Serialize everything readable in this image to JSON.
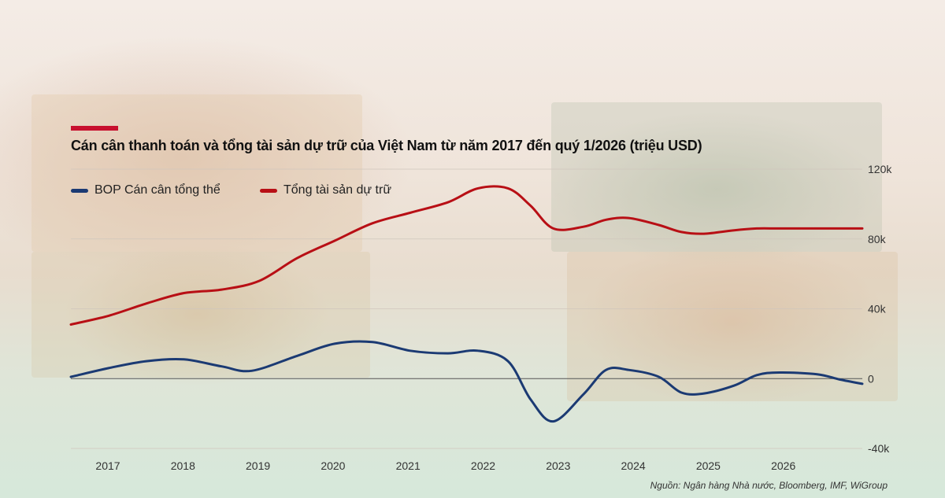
{
  "chart_data": {
    "type": "line",
    "title": "Cán cân thanh toán và tổng tài sản dự trữ của Việt Nam từ năm 2017 đến quý 1/2026 (triệu USD)",
    "categories": [
      "2017",
      "2018",
      "2019",
      "2020",
      "2021",
      "2022",
      "2023",
      "2024",
      "2025",
      "2026"
    ],
    "y_ticks": [
      "120k",
      "80k",
      "40k",
      "0",
      "-40k"
    ],
    "ylim": [
      -40000,
      120000
    ],
    "grid": true,
    "legend_position": "top-left",
    "series": [
      {
        "name": "BOP Cán cân tổng thể",
        "color": "#1b3a73",
        "x": [
          2016.5,
          2017.0,
          2017.5,
          2018.0,
          2018.5,
          2018.9,
          2019.5,
          2020.0,
          2020.5,
          2021.0,
          2021.5,
          2021.9,
          2022.3,
          2022.6,
          2022.9,
          2023.3,
          2023.6,
          2023.9,
          2024.3,
          2024.6,
          2024.9,
          2025.3,
          2025.6,
          2025.9,
          2026.4,
          2026.7,
          2027.0
        ],
        "values": [
          1000,
          6000,
          10000,
          11000,
          7000,
          4500,
          13000,
          20000,
          21000,
          16000,
          14500,
          16000,
          10000,
          -12000,
          -24500,
          -9000,
          5000,
          5000,
          1000,
          -8000,
          -8500,
          -4000,
          2000,
          3500,
          2500,
          -500,
          -3000
        ]
      },
      {
        "name": "Tổng tài sản dự trữ",
        "color": "#b80f15",
        "x": [
          2016.5,
          2017.0,
          2017.5,
          2018.0,
          2018.5,
          2019.0,
          2019.5,
          2020.0,
          2020.5,
          2021.0,
          2021.5,
          2021.9,
          2022.3,
          2022.6,
          2022.9,
          2023.3,
          2023.6,
          2023.9,
          2024.3,
          2024.6,
          2024.9,
          2025.3,
          2025.6,
          2025.9,
          2026.4,
          2026.7,
          2027.0
        ],
        "values": [
          31000,
          36000,
          43000,
          49000,
          51000,
          56000,
          69000,
          79000,
          89000,
          95000,
          101000,
          109000,
          109000,
          99000,
          86000,
          87000,
          91000,
          92000,
          88000,
          84000,
          83000,
          85000,
          86000,
          86000,
          86000,
          86000,
          86000
        ]
      }
    ]
  },
  "source": "Nguồn: Ngân hàng Nhà nước, Bloomberg, IMF, WiGroup"
}
